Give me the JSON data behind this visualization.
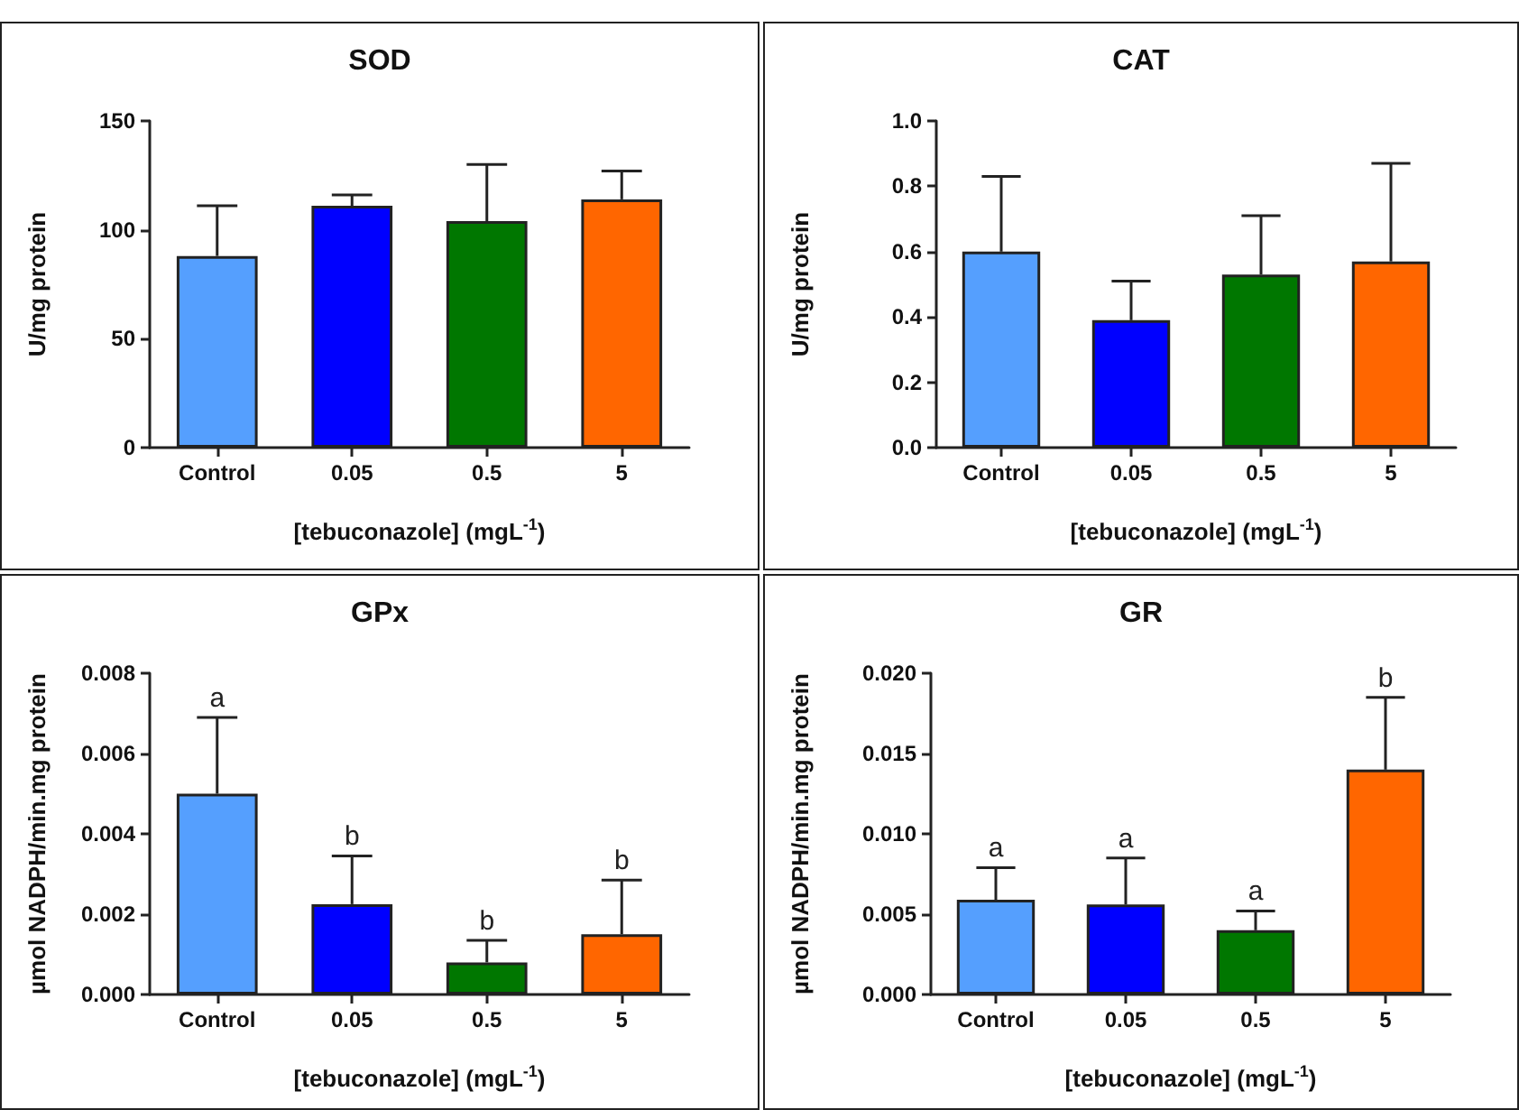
{
  "chart_data": [
    {
      "type": "bar",
      "title": "SOD",
      "xlabel": "[tebuconazole] (mgL$^{-1}$)",
      "ylabel": "U/mg protein",
      "categories": [
        "Control",
        "0.05",
        "0.5",
        "5"
      ],
      "values": [
        88,
        111,
        104,
        114
      ],
      "colors": [
        "#559ffe",
        "#0000ff",
        "#007700",
        "#ff6600"
      ],
      "errors": [
        [
          88,
          111
        ],
        [
          111,
          116
        ],
        [
          104,
          130
        ],
        [
          114,
          127
        ]
      ],
      "ylim": [
        0,
        150
      ],
      "yticks": [
        0,
        50,
        100,
        150
      ]
    },
    {
      "type": "bar",
      "title": "CAT",
      "xlabel": "[tebuconazole] (mgL$^{-1}$)",
      "ylabel": "U/mg protein",
      "categories": [
        "Control",
        "0.05",
        "0.5",
        "5"
      ],
      "values": [
        0.6,
        0.39,
        0.53,
        0.57
      ],
      "colors": [
        "#559ffe",
        "#0000ff",
        "#007700",
        "#ff6600"
      ],
      "errors": [
        [
          0.6,
          0.83
        ],
        [
          0.39,
          0.51
        ],
        [
          0.53,
          0.71
        ],
        [
          0.57,
          0.87
        ]
      ],
      "ylim": [
        0,
        1
      ],
      "yticks": [
        {
          "value": 0,
          "label": "0.0"
        },
        0.2,
        0.4,
        0.6,
        0.8,
        {
          "value": 1,
          "label": "1.0"
        }
      ]
    },
    {
      "type": "bar",
      "title": "GPx",
      "xlabel": "[tebuconazole] (mgL$^{-1}$)",
      "ylabel": "µmol NADPH/min.mg protein",
      "categories": [
        "Control",
        "0.05",
        "0.5",
        "5"
      ],
      "values": [
        0.005,
        0.00225,
        0.0008,
        0.0015
      ],
      "colors": [
        "#559ffe",
        "#0000ff",
        "#007700",
        "#ff6600"
      ],
      "errors": [
        [
          0.005,
          0.0069
        ],
        [
          0.00225,
          0.00345
        ],
        [
          0.0008,
          0.00135
        ],
        [
          0.0015,
          0.00285
        ]
      ],
      "ylim": [
        0,
        0.008
      ],
      "yticks": [
        {
          "value": 0,
          "label": "0.000"
        },
        0.002,
        0.004,
        0.006,
        0.008
      ],
      "annotations": [
        {
          "text": "a",
          "x": "Control",
          "y": 0.0069
        },
        {
          "text": "b",
          "x": "0.05",
          "y": 0.00345
        },
        {
          "text": "b",
          "x": "0.5",
          "y": 0.00135
        },
        {
          "text": "b",
          "x": "5",
          "y": 0.00285
        }
      ]
    },
    {
      "type": "bar",
      "title": "GR",
      "xlabel": "[tebuconazole] (mgL$^{-1}$)",
      "ylabel": "µmol NADPH/min.mg protein",
      "categories": [
        "Control",
        "0.05",
        "0.5",
        "5"
      ],
      "values": [
        0.0059,
        0.0056,
        0.004,
        0.014
      ],
      "colors": [
        "#559ffe",
        "#0000ff",
        "#007700",
        "#ff6600"
      ],
      "errors": [
        [
          0.0059,
          0.0079
        ],
        [
          0.0056,
          0.0085
        ],
        [
          0.004,
          0.0052
        ],
        [
          0.014,
          0.0185
        ]
      ],
      "ylim": [
        0,
        0.02
      ],
      "yticks": [
        {
          "value": 0,
          "label": "0.000"
        },
        {
          "value": 0.005,
          "label": "0.005"
        },
        {
          "value": 0.01,
          "label": "0.010"
        },
        {
          "value": 0.015,
          "label": "0.015"
        },
        {
          "value": 0.02,
          "label": "0.020"
        }
      ],
      "annotations": [
        {
          "text": "a",
          "x": "Control",
          "y": 0.0079
        },
        {
          "text": "a",
          "x": "0.05",
          "y": 0.0085
        },
        {
          "text": "a",
          "x": "0.5",
          "y": 0.0052
        },
        {
          "text": "b",
          "x": "5",
          "y": 0.0185
        }
      ]
    }
  ]
}
